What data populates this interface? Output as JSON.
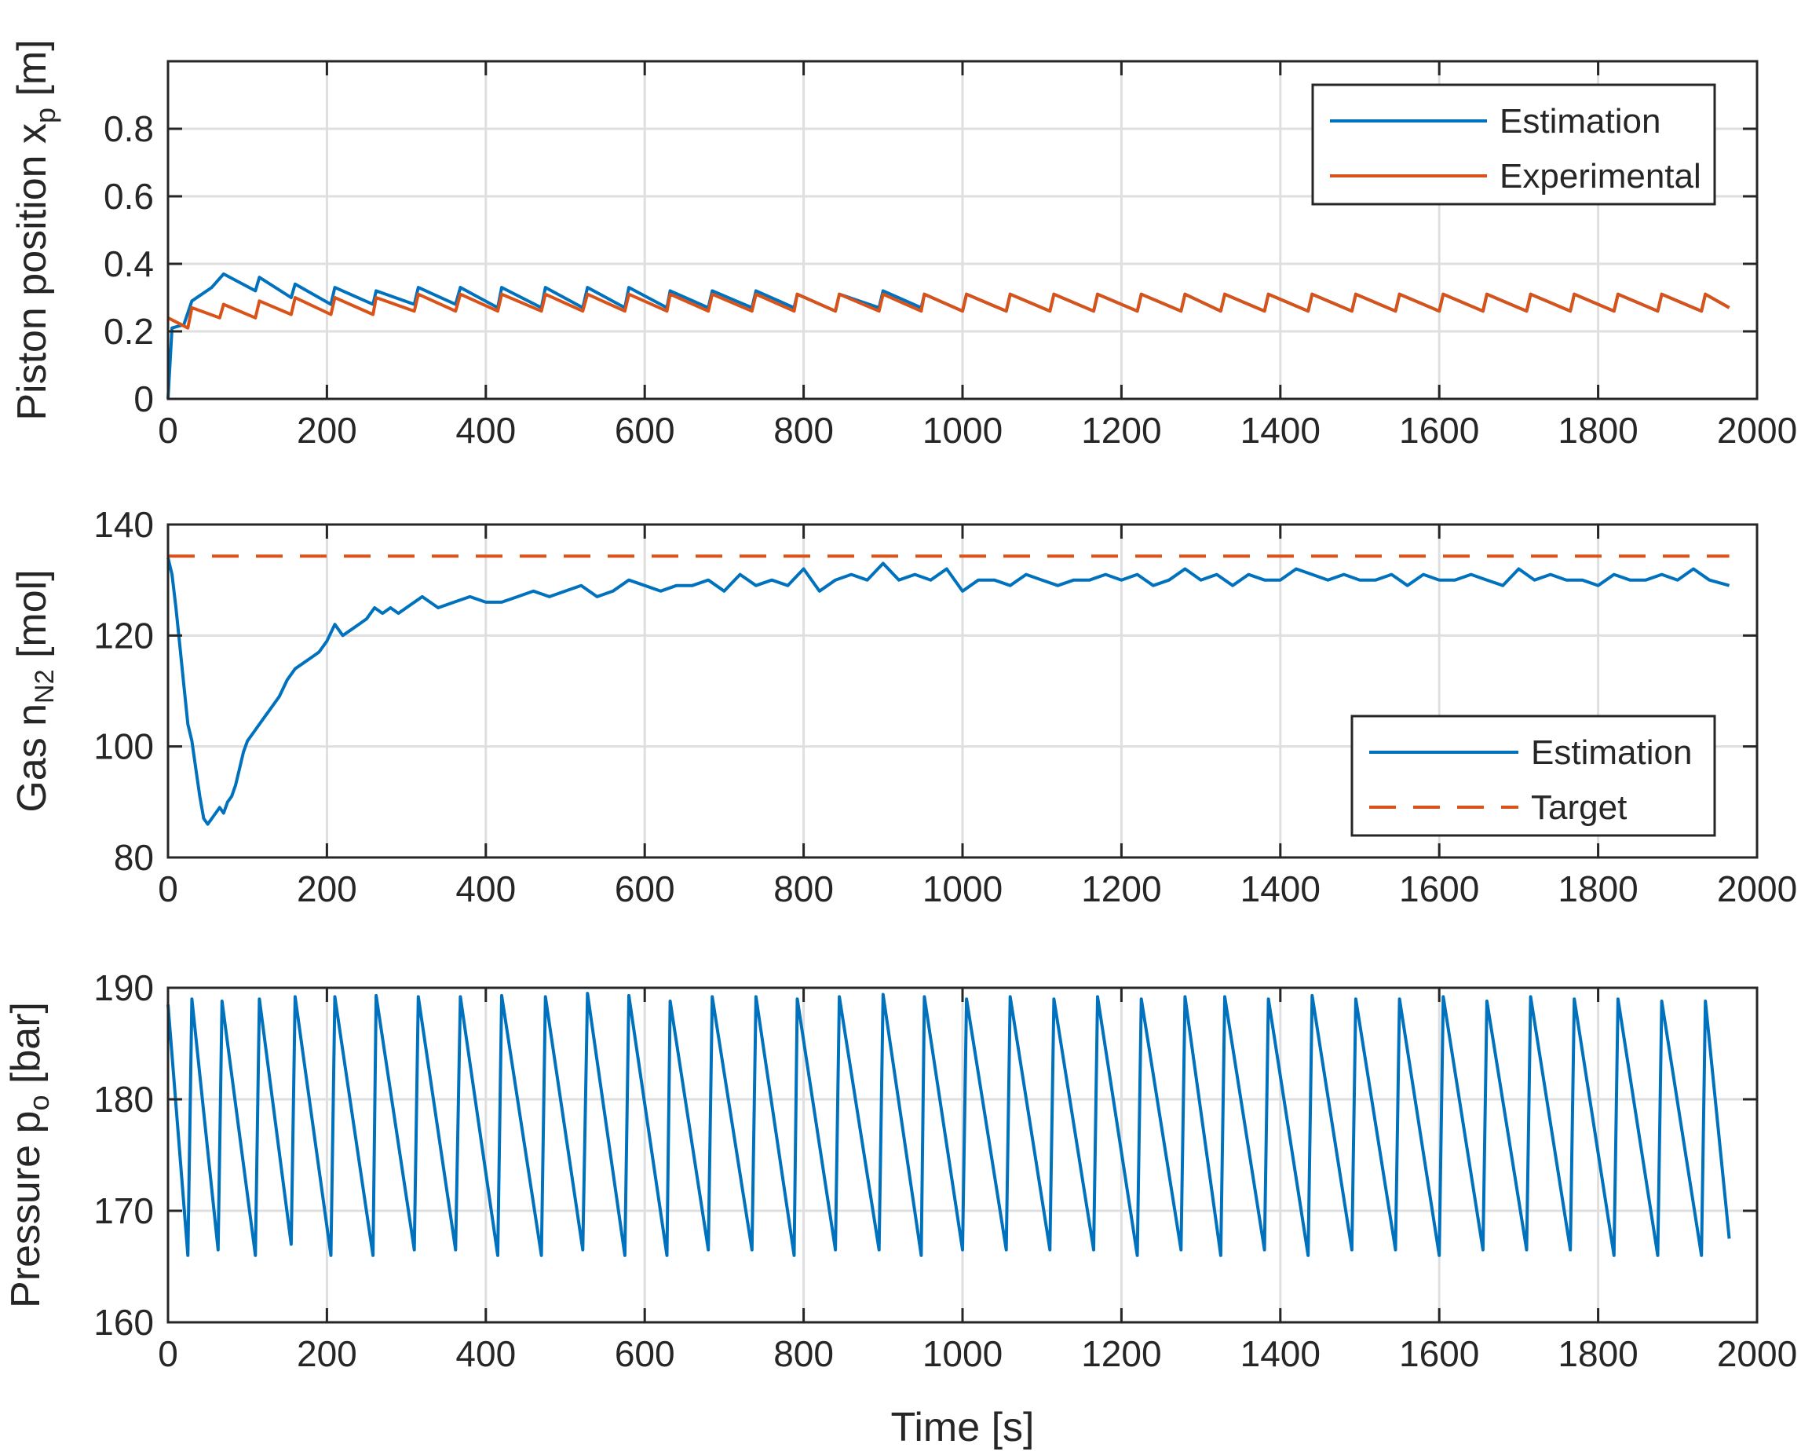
{
  "chart_data": [
    {
      "type": "line",
      "panel": "top",
      "ylabel_main": "Piston position x",
      "ylabel_sub": "p",
      "ylabel_unit": " [m]",
      "xlim": [
        0,
        2000
      ],
      "ylim": [
        0,
        1
      ],
      "xticks": [
        0,
        200,
        400,
        600,
        800,
        1000,
        1200,
        1400,
        1600,
        1800,
        2000
      ],
      "xtick_labels": [
        "0",
        "200",
        "400",
        "600",
        "800",
        "1000",
        "1200",
        "1400",
        "1600",
        "1800",
        "2000"
      ],
      "yticks": [
        0,
        0.2,
        0.4,
        0.6,
        0.8
      ],
      "ytick_labels": [
        "0",
        "0.2",
        "0.4",
        "0.6",
        "0.8"
      ],
      "legend": [
        "Estimation",
        "Experimental"
      ],
      "legend_position": "top-right",
      "series": [
        {
          "name": "Estimation",
          "color": "#0072BD",
          "style": "solid",
          "x": [
            0,
            5,
            20,
            30,
            55,
            70,
            110,
            115,
            155,
            160,
            205,
            210,
            258,
            262,
            310,
            315,
            362,
            368,
            415,
            420,
            470,
            475,
            522,
            528,
            575,
            580,
            628,
            632,
            680,
            685,
            735,
            740,
            788,
            792,
            840,
            845,
            895,
            900,
            948,
            952,
            1000,
            1005,
            1055,
            1060,
            1110,
            1115,
            1165,
            1170,
            1220,
            1225,
            1275,
            1280,
            1325,
            1330,
            1380,
            1385,
            1435,
            1440,
            1490,
            1495,
            1545,
            1550,
            1600,
            1605,
            1655,
            1660,
            1710,
            1715,
            1765,
            1770,
            1820,
            1825,
            1875,
            1880,
            1930,
            1935,
            1965
          ],
          "y": [
            0.0,
            0.21,
            0.22,
            0.29,
            0.33,
            0.37,
            0.32,
            0.36,
            0.3,
            0.34,
            0.28,
            0.33,
            0.28,
            0.32,
            0.28,
            0.33,
            0.28,
            0.33,
            0.27,
            0.33,
            0.27,
            0.33,
            0.27,
            0.33,
            0.27,
            0.33,
            0.27,
            0.32,
            0.27,
            0.32,
            0.27,
            0.32,
            0.27,
            0.31,
            0.26,
            0.31,
            0.27,
            0.32,
            0.27,
            0.31,
            0.26,
            0.31,
            0.26,
            0.31,
            0.26,
            0.31,
            0.26,
            0.31,
            0.26,
            0.31,
            0.26,
            0.31,
            0.26,
            0.31,
            0.26,
            0.31,
            0.26,
            0.31,
            0.26,
            0.31,
            0.26,
            0.31,
            0.26,
            0.31,
            0.26,
            0.31,
            0.26,
            0.31,
            0.26,
            0.31,
            0.26,
            0.31,
            0.26,
            0.31,
            0.26,
            0.31,
            0.27
          ]
        },
        {
          "name": "Experimental",
          "color": "#D95319",
          "style": "solid",
          "x": [
            0,
            25,
            30,
            65,
            70,
            110,
            115,
            155,
            160,
            205,
            210,
            258,
            262,
            310,
            315,
            362,
            368,
            415,
            420,
            470,
            475,
            522,
            528,
            575,
            580,
            628,
            632,
            680,
            685,
            735,
            740,
            788,
            792,
            840,
            845,
            895,
            900,
            948,
            952,
            1000,
            1005,
            1055,
            1060,
            1110,
            1115,
            1165,
            1170,
            1220,
            1225,
            1275,
            1280,
            1325,
            1330,
            1380,
            1385,
            1435,
            1440,
            1490,
            1495,
            1545,
            1550,
            1600,
            1605,
            1655,
            1660,
            1710,
            1715,
            1765,
            1770,
            1820,
            1825,
            1875,
            1880,
            1930,
            1935,
            1965
          ],
          "y": [
            0.24,
            0.21,
            0.27,
            0.24,
            0.28,
            0.24,
            0.29,
            0.25,
            0.3,
            0.25,
            0.3,
            0.25,
            0.3,
            0.26,
            0.31,
            0.26,
            0.31,
            0.26,
            0.31,
            0.26,
            0.31,
            0.26,
            0.31,
            0.26,
            0.31,
            0.26,
            0.31,
            0.26,
            0.31,
            0.26,
            0.31,
            0.26,
            0.31,
            0.26,
            0.31,
            0.26,
            0.31,
            0.26,
            0.31,
            0.26,
            0.31,
            0.26,
            0.31,
            0.26,
            0.31,
            0.26,
            0.31,
            0.26,
            0.31,
            0.26,
            0.31,
            0.26,
            0.31,
            0.26,
            0.31,
            0.26,
            0.31,
            0.26,
            0.31,
            0.26,
            0.31,
            0.26,
            0.31,
            0.26,
            0.31,
            0.26,
            0.31,
            0.26,
            0.31,
            0.26,
            0.31,
            0.26,
            0.31,
            0.26,
            0.31,
            0.27
          ]
        }
      ]
    },
    {
      "type": "line",
      "panel": "middle",
      "ylabel_main": "Gas n",
      "ylabel_sub": "N2",
      "ylabel_unit": " [mol]",
      "xlim": [
        0,
        2000
      ],
      "ylim": [
        80,
        140
      ],
      "xticks": [
        0,
        200,
        400,
        600,
        800,
        1000,
        1200,
        1400,
        1600,
        1800,
        2000
      ],
      "xtick_labels": [
        "0",
        "200",
        "400",
        "600",
        "800",
        "1000",
        "1200",
        "1400",
        "1600",
        "1800",
        "2000"
      ],
      "yticks": [
        80,
        100,
        120,
        140
      ],
      "ytick_labels": [
        "80",
        "100",
        "120",
        "140"
      ],
      "legend": [
        "Estimation",
        "Target"
      ],
      "legend_position": "bottom-right",
      "series": [
        {
          "name": "Estimation",
          "color": "#0072BD",
          "style": "solid",
          "x": [
            0,
            5,
            10,
            15,
            20,
            25,
            30,
            35,
            40,
            45,
            50,
            55,
            60,
            65,
            70,
            75,
            80,
            85,
            90,
            95,
            100,
            110,
            120,
            130,
            140,
            150,
            160,
            170,
            180,
            190,
            200,
            210,
            220,
            230,
            240,
            250,
            260,
            270,
            280,
            290,
            300,
            320,
            340,
            360,
            380,
            400,
            420,
            440,
            460,
            480,
            500,
            520,
            540,
            560,
            580,
            600,
            620,
            640,
            660,
            680,
            700,
            720,
            740,
            760,
            780,
            800,
            820,
            840,
            860,
            880,
            900,
            920,
            940,
            960,
            980,
            1000,
            1020,
            1040,
            1060,
            1080,
            1100,
            1120,
            1140,
            1160,
            1180,
            1200,
            1220,
            1240,
            1260,
            1280,
            1300,
            1320,
            1340,
            1360,
            1380,
            1400,
            1420,
            1440,
            1460,
            1480,
            1500,
            1520,
            1540,
            1560,
            1580,
            1600,
            1620,
            1640,
            1660,
            1680,
            1700,
            1720,
            1740,
            1760,
            1780,
            1800,
            1820,
            1840,
            1860,
            1880,
            1900,
            1920,
            1940,
            1965
          ],
          "y": [
            134,
            131,
            125,
            118,
            111,
            104,
            101,
            96,
            91,
            87,
            86,
            87,
            88,
            89,
            88,
            90,
            91,
            93,
            96,
            99,
            101,
            103,
            105,
            107,
            109,
            112,
            114,
            115,
            116,
            117,
            119,
            122,
            120,
            121,
            122,
            123,
            125,
            124,
            125,
            124,
            125,
            127,
            125,
            126,
            127,
            126,
            126,
            127,
            128,
            127,
            128,
            129,
            127,
            128,
            130,
            129,
            128,
            129,
            129,
            130,
            128,
            131,
            129,
            130,
            129,
            132,
            128,
            130,
            131,
            130,
            133,
            130,
            131,
            130,
            132,
            128,
            130,
            130,
            129,
            131,
            130,
            129,
            130,
            130,
            131,
            130,
            131,
            129,
            130,
            132,
            130,
            131,
            129,
            131,
            130,
            130,
            132,
            131,
            130,
            131,
            130,
            130,
            131,
            129,
            131,
            130,
            130,
            131,
            130,
            129,
            132,
            130,
            131,
            130,
            130,
            129,
            131,
            130,
            130,
            131,
            130,
            132,
            130,
            129
          ]
        },
        {
          "name": "Target",
          "color": "#D95319",
          "style": "dashed",
          "x": [
            0,
            1965
          ],
          "y": [
            134.3,
            134.3
          ]
        }
      ]
    },
    {
      "type": "line",
      "panel": "bottom",
      "ylabel_main": "Pressure p",
      "ylabel_sub": "o",
      "ylabel_unit": " [bar]",
      "xlabel": "Time [s]",
      "xlim": [
        0,
        2000
      ],
      "ylim": [
        160,
        190
      ],
      "xticks": [
        0,
        200,
        400,
        600,
        800,
        1000,
        1200,
        1400,
        1600,
        1800,
        2000
      ],
      "xtick_labels": [
        "0",
        "200",
        "400",
        "600",
        "800",
        "1000",
        "1200",
        "1400",
        "1600",
        "1800",
        "2000"
      ],
      "yticks": [
        160,
        170,
        180,
        190
      ],
      "ytick_labels": [
        "160",
        "170",
        "180",
        "190"
      ],
      "series": [
        {
          "name": "Pressure",
          "color": "#0072BD",
          "style": "solid",
          "x": [
            0,
            25,
            30,
            63,
            68,
            110,
            115,
            155,
            160,
            205,
            210,
            258,
            262,
            310,
            315,
            362,
            368,
            415,
            420,
            470,
            475,
            522,
            528,
            575,
            580,
            628,
            632,
            680,
            685,
            735,
            740,
            788,
            792,
            840,
            845,
            895,
            900,
            948,
            952,
            1000,
            1005,
            1055,
            1060,
            1110,
            1115,
            1165,
            1170,
            1220,
            1225,
            1275,
            1280,
            1325,
            1330,
            1380,
            1385,
            1435,
            1440,
            1490,
            1495,
            1545,
            1550,
            1600,
            1605,
            1655,
            1660,
            1710,
            1715,
            1765,
            1770,
            1820,
            1825,
            1875,
            1880,
            1930,
            1935,
            1965
          ],
          "y": [
            188.5,
            166,
            189,
            166.5,
            188.8,
            166,
            189,
            167,
            189.2,
            166,
            189.2,
            166,
            189.3,
            166.5,
            189.2,
            166.5,
            189.2,
            166,
            189.3,
            166,
            189.2,
            166.5,
            189.5,
            166,
            189.3,
            166,
            188.8,
            166.5,
            189.2,
            166.5,
            189.2,
            166,
            189,
            166.5,
            189.2,
            166.5,
            189.4,
            166,
            189.2,
            166.5,
            189,
            166.5,
            189.2,
            166.5,
            189,
            166.5,
            189.2,
            166,
            189,
            166.5,
            189.2,
            166,
            189.2,
            166.5,
            189,
            166,
            189.3,
            166.5,
            189,
            166.5,
            189,
            166,
            189.2,
            166.5,
            188.8,
            166.5,
            189.2,
            166.5,
            189,
            166,
            189,
            166,
            188.8,
            166,
            188.8,
            167.5
          ]
        }
      ]
    }
  ]
}
